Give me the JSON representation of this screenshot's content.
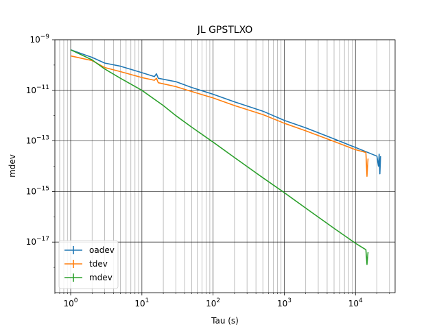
{
  "chart_data": {
    "type": "line",
    "title": "JL GPSTLXO",
    "xlabel": "Tau (s)",
    "ylabel": "mdev",
    "x_scale": "log",
    "y_scale": "log",
    "xlim": [
      0.6,
      36000
    ],
    "ylim": [
      1e-19,
      1e-09
    ],
    "grid": {
      "major": true,
      "minor_x": true
    },
    "legend_position": "lower-left",
    "x_ticks": [
      {
        "value": 1,
        "base": "10",
        "exp": "0"
      },
      {
        "value": 10,
        "base": "10",
        "exp": "1"
      },
      {
        "value": 100,
        "base": "10",
        "exp": "2"
      },
      {
        "value": 1000,
        "base": "10",
        "exp": "3"
      },
      {
        "value": 10000,
        "base": "10",
        "exp": "4"
      }
    ],
    "y_ticks": [
      {
        "value": 1e-09,
        "base": "10",
        "exp": "−9"
      },
      {
        "value": 1e-11,
        "base": "10",
        "exp": "−11"
      },
      {
        "value": 1e-13,
        "base": "10",
        "exp": "−13"
      },
      {
        "value": 1e-15,
        "base": "10",
        "exp": "−15"
      },
      {
        "value": 1e-17,
        "base": "10",
        "exp": "−17"
      }
    ],
    "series": [
      {
        "name": "oadev",
        "color": "#1f77b4",
        "points": [
          [
            1,
            4e-10
          ],
          [
            2,
            2e-10
          ],
          [
            3,
            1.2e-10
          ],
          [
            5,
            9e-11
          ],
          [
            10,
            5e-11
          ],
          [
            15,
            3.5e-11
          ],
          [
            16,
            4.5e-11
          ],
          [
            17,
            3e-11
          ],
          [
            30,
            2.2e-11
          ],
          [
            50,
            1.3e-11
          ],
          [
            100,
            7e-12
          ],
          [
            200,
            3.5e-12
          ],
          [
            500,
            1.5e-12
          ],
          [
            1000,
            6.5e-13
          ],
          [
            2000,
            3.3e-13
          ],
          [
            5000,
            1.2e-13
          ],
          [
            10000,
            5.5e-14
          ],
          [
            20000,
            2.5e-14
          ],
          [
            21000,
            1e-14
          ],
          [
            21500,
            3e-14
          ],
          [
            22000,
            5e-15
          ],
          [
            22500,
            2.5e-14
          ]
        ]
      },
      {
        "name": "tdev",
        "color": "#ff7f0e",
        "points": [
          [
            1,
            2.3e-10
          ],
          [
            2,
            1.5e-10
          ],
          [
            3,
            8e-11
          ],
          [
            5,
            5.5e-11
          ],
          [
            10,
            3.2e-11
          ],
          [
            15,
            2.5e-11
          ],
          [
            16,
            3e-11
          ],
          [
            17,
            2e-11
          ],
          [
            30,
            1.4e-11
          ],
          [
            50,
            9e-12
          ],
          [
            100,
            5e-12
          ],
          [
            200,
            2.5e-12
          ],
          [
            500,
            1.1e-12
          ],
          [
            1000,
            5e-13
          ],
          [
            2000,
            2.5e-13
          ],
          [
            5000,
            9.5e-14
          ],
          [
            10000,
            4.5e-14
          ],
          [
            14000,
            3.5e-14
          ],
          [
            14500,
            4e-15
          ],
          [
            15000,
            2e-14
          ]
        ]
      },
      {
        "name": "mdev",
        "color": "#2ca02c",
        "points": [
          [
            1,
            4e-10
          ],
          [
            2,
            1.6e-10
          ],
          [
            3,
            7e-11
          ],
          [
            5,
            3e-11
          ],
          [
            10,
            1e-11
          ],
          [
            20,
            2.5e-12
          ],
          [
            30,
            1e-12
          ],
          [
            50,
            3.5e-13
          ],
          [
            100,
            9e-14
          ],
          [
            200,
            2.2e-14
          ],
          [
            500,
            3.5e-15
          ],
          [
            1000,
            9e-16
          ],
          [
            2000,
            2.2e-16
          ],
          [
            5000,
            3.5e-17
          ],
          [
            10000,
            9e-18
          ],
          [
            14000,
            5e-18
          ],
          [
            14500,
            1.3e-18
          ],
          [
            15000,
            4e-18
          ]
        ]
      }
    ]
  }
}
